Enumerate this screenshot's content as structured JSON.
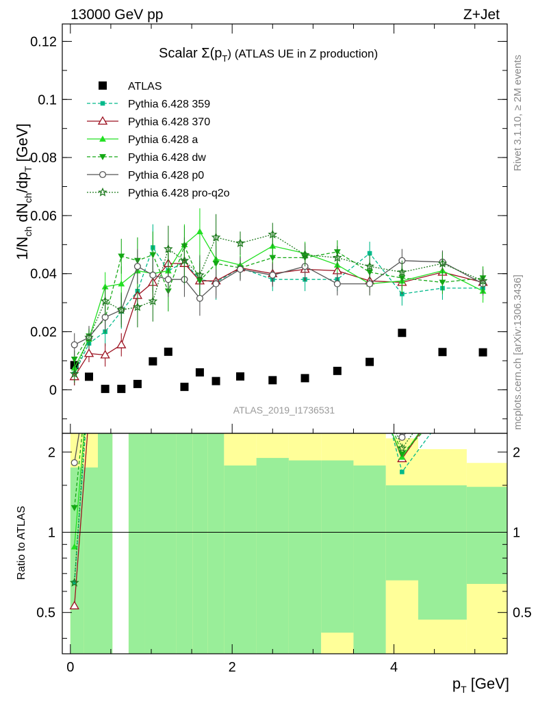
{
  "header": {
    "left": "13000 GeV pp",
    "right": "Z+Jet"
  },
  "side_labels": {
    "rivet": "Rivet 3.1.10, ≥ 2M events",
    "mcplots": "mcplots.cern.ch [arXiv:1306.3436]"
  },
  "chart_data": {
    "type": "scatter",
    "title_main": "Scalar Σ(p",
    "title_sub": "T",
    "title_tail": ") (ATLAS UE in Z production)",
    "watermark": "ATLAS_2019_I1736531",
    "ylabel": "1/N",
    "ylabel_parts": [
      "1/N",
      "ch",
      " dN",
      "ch",
      "/dp",
      "T",
      " [GeV]"
    ],
    "xlabel_parts": [
      "p",
      "T",
      " [GeV]"
    ],
    "ratio_ylabel": "Ratio to ATLAS",
    "xlim": [
      -0.1,
      5.4
    ],
    "ylim": [
      -0.015,
      0.126
    ],
    "ratio_ylim": [
      0.35,
      2.35
    ],
    "x_ticks": [
      "0",
      "2",
      "4"
    ],
    "y_ticks": [
      "0",
      "0.02",
      "0.04",
      "0.06",
      "0.08",
      "0.1",
      "0.12"
    ],
    "ratio_ticks": [
      "0.5",
      "1",
      "2"
    ],
    "x": [
      0.05,
      0.23,
      0.43,
      0.63,
      0.83,
      1.02,
      1.21,
      1.41,
      1.6,
      1.8,
      2.1,
      2.5,
      2.9,
      3.3,
      3.7,
      4.1,
      4.6,
      5.1
    ],
    "series": [
      {
        "name": "ATLAS",
        "marker": "square",
        "color": "#000000",
        "dash": "",
        "err": [
          0.0015,
          0.001,
          0.001,
          0.001,
          0.001,
          0.001,
          0.001,
          0.001,
          0.001,
          0.001,
          0.001,
          0.001,
          0.001,
          0.001,
          0.001,
          0.001,
          0.001,
          0.001
        ],
        "values": [
          0.0085,
          0.0045,
          0.0003,
          0.0003,
          0.002,
          0.0098,
          0.0131,
          0.001,
          0.006,
          0.003,
          0.0046,
          0.0033,
          0.004,
          0.0065,
          0.0096,
          0.0196,
          0.013,
          0.0129
        ]
      },
      {
        "name": "Pythia 6.428 359",
        "marker": "square-small",
        "color": "#00b98a",
        "dash": "5,3",
        "err": [
          0.004,
          0.004,
          0.005,
          0.006,
          0.007,
          0.008,
          0.008,
          0.008,
          0.008,
          0.006,
          0.004,
          0.004,
          0.004,
          0.004,
          0.004,
          0.004,
          0.004,
          0.004
        ],
        "values": [
          0.0055,
          0.016,
          0.02,
          0.027,
          0.034,
          0.049,
          0.041,
          0.044,
          0.038,
          0.037,
          0.042,
          0.038,
          0.038,
          0.038,
          0.047,
          0.033,
          0.035,
          0.035
        ]
      },
      {
        "name": "Pythia 6.428 370",
        "marker": "triangle-open",
        "color": "#9b0f1e",
        "dash": "",
        "err": [
          0.003,
          0.003,
          0.004,
          0.004,
          0.005,
          0.006,
          0.006,
          0.006,
          0.006,
          0.005,
          0.004,
          0.004,
          0.004,
          0.004,
          0.004,
          0.004,
          0.004,
          0.004
        ],
        "values": [
          0.0045,
          0.0125,
          0.012,
          0.0155,
          0.0325,
          0.037,
          0.0435,
          0.0435,
          0.0375,
          0.0375,
          0.042,
          0.04,
          0.0415,
          0.041,
          0.0375,
          0.037,
          0.0405,
          0.037
        ]
      },
      {
        "name": "Pythia 6.428 a",
        "marker": "triangle",
        "color": "#22e022",
        "dash": "",
        "err": [
          0.003,
          0.003,
          0.005,
          0.006,
          0.007,
          0.007,
          0.007,
          0.007,
          0.008,
          0.006,
          0.004,
          0.004,
          0.004,
          0.004,
          0.004,
          0.004,
          0.004,
          0.004
        ],
        "values": [
          0.0075,
          0.0175,
          0.0355,
          0.0365,
          0.041,
          0.04,
          0.041,
          0.05,
          0.0545,
          0.045,
          0.043,
          0.0495,
          0.047,
          0.043,
          0.0365,
          0.0375,
          0.041,
          0.034
        ]
      },
      {
        "name": "Pythia 6.428 dw",
        "marker": "triangle-down",
        "color": "#14a814",
        "dash": "5,3",
        "err": [
          0.003,
          0.003,
          0.005,
          0.006,
          0.008,
          0.008,
          0.007,
          0.007,
          0.007,
          0.006,
          0.004,
          0.004,
          0.004,
          0.004,
          0.004,
          0.004,
          0.004,
          0.004
        ],
        "values": [
          0.0105,
          0.0185,
          0.0245,
          0.046,
          0.0445,
          0.0465,
          0.034,
          0.0495,
          0.0375,
          0.0435,
          0.042,
          0.0455,
          0.0455,
          0.0475,
          0.0405,
          0.0385,
          0.037,
          0.0385
        ]
      },
      {
        "name": "Pythia 6.428 p0",
        "marker": "circle-open",
        "color": "#555555",
        "dash": "",
        "err": [
          0.004,
          0.004,
          0.005,
          0.005,
          0.006,
          0.006,
          0.006,
          0.006,
          0.006,
          0.005,
          0.004,
          0.004,
          0.004,
          0.004,
          0.004,
          0.004,
          0.004,
          0.004
        ],
        "values": [
          0.0155,
          0.018,
          0.025,
          0.0275,
          0.0425,
          0.0395,
          0.038,
          0.038,
          0.0315,
          0.0365,
          0.0415,
          0.0395,
          0.0425,
          0.0365,
          0.0365,
          0.0445,
          0.044,
          0.0365
        ]
      },
      {
        "name": "Pythia 6.428 pro-q2o",
        "marker": "star",
        "color": "#1e7a1e",
        "dash": "2,2",
        "err": [
          0.003,
          0.003,
          0.005,
          0.006,
          0.007,
          0.007,
          0.008,
          0.008,
          0.007,
          0.008,
          0.004,
          0.004,
          0.004,
          0.004,
          0.004,
          0.004,
          0.004,
          0.004
        ],
        "values": [
          0.0055,
          0.018,
          0.0305,
          0.0275,
          0.0285,
          0.0305,
          0.0485,
          0.0445,
          0.0395,
          0.0525,
          0.0505,
          0.0535,
          0.0465,
          0.0455,
          0.0425,
          0.0405,
          0.0435,
          0.0375
        ]
      }
    ],
    "bands": {
      "edges": [
        0,
        0.17,
        0.34,
        0.52,
        0.72,
        0.92,
        1.11,
        1.31,
        1.51,
        1.7,
        1.9,
        2.3,
        2.7,
        3.1,
        3.5,
        3.9,
        4.3,
        4.9,
        5.4
      ],
      "green_lo": [
        0.35,
        0.35,
        0.35,
        null,
        0.35,
        0.35,
        0.35,
        0.35,
        0.35,
        0.35,
        0.35,
        0.35,
        0.35,
        0.35,
        0.35,
        0.35,
        0.35,
        0.35
      ],
      "green_hi": [
        1.75,
        1.75,
        2.35,
        null,
        2.35,
        2.35,
        2.35,
        2.35,
        2.35,
        2.35,
        1.78,
        1.9,
        1.86,
        1.86,
        1.78,
        1.5,
        1.5,
        1.48
      ],
      "yellow_lo": [
        0.35,
        0.35,
        0.35,
        null,
        0.35,
        0.35,
        0.35,
        0.35,
        0.35,
        0.35,
        0.35,
        0.35,
        0.35,
        0.35,
        0.35,
        0.35,
        0.35,
        0.35
      ],
      "yellow_hi": [
        2.35,
        2.35,
        2.35,
        null,
        2.35,
        2.35,
        2.35,
        2.35,
        2.35,
        2.35,
        2.35,
        2.35,
        2.35,
        2.35,
        2.35,
        2.25,
        2.05,
        1.82
      ],
      "green_inner_lo": [
        0.35,
        0.35,
        0.35,
        null,
        0.35,
        0.35,
        0.35,
        0.35,
        0.35,
        0.35,
        0.35,
        0.35,
        0.35,
        0.42,
        0.35,
        0.66,
        0.47,
        0.64
      ]
    }
  }
}
